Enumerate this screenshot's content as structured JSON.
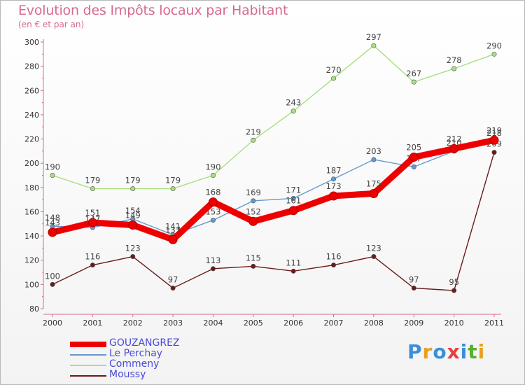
{
  "chart_data": {
    "type": "line",
    "title": "Evolution des Impôts locaux par Habitant",
    "subtitle": "(en € et par an)",
    "xlabel": "",
    "ylabel": "",
    "ylim": [
      80,
      300
    ],
    "yticks": [
      80,
      100,
      120,
      140,
      160,
      180,
      200,
      220,
      240,
      260,
      280,
      300
    ],
    "categories": [
      "2000",
      "2001",
      "2002",
      "2003",
      "2004",
      "2005",
      "2006",
      "2007",
      "2008",
      "2009",
      "2010",
      "2011"
    ],
    "grid": false,
    "legend_position": "bottom-left",
    "series": [
      {
        "name": "Moussy",
        "color": "#6b1a1a",
        "values": [
          100,
          116,
          123,
          97,
          113,
          115,
          111,
          116,
          123,
          97,
          95,
          209
        ]
      },
      {
        "name": "Commeny",
        "color": "#a8e080",
        "values": [
          190,
          179,
          179,
          179,
          190,
          219,
          243,
          270,
          297,
          267,
          278,
          290
        ]
      },
      {
        "name": "Le Perchay",
        "color": "#6699cc",
        "values": [
          148,
          147,
          154,
          141,
          153,
          169,
          171,
          187,
          203,
          197,
          210,
          218
        ]
      },
      {
        "name": "GOUZANGREZ",
        "color": "#ee0000",
        "values": [
          143,
          151,
          149,
          137,
          168,
          152,
          161,
          173,
          175,
          205,
          212,
          219
        ]
      }
    ]
  },
  "legend": [
    {
      "name": "GOUZANGREZ",
      "color": "#ee0000"
    },
    {
      "name": "Le Perchay",
      "color": "#6699cc"
    },
    {
      "name": "Commeny",
      "color": "#a8e080"
    },
    {
      "name": "Moussy",
      "color": "#6b1a1a"
    }
  ],
  "logo": {
    "letters": [
      "P",
      "r",
      "o",
      "x",
      "i",
      "t",
      "i"
    ],
    "colors": [
      "#3a8fd8",
      "#e8a020",
      "#3a8fd8",
      "#e84040",
      "#3a8fd8",
      "#58b030",
      "#e8a020"
    ]
  }
}
